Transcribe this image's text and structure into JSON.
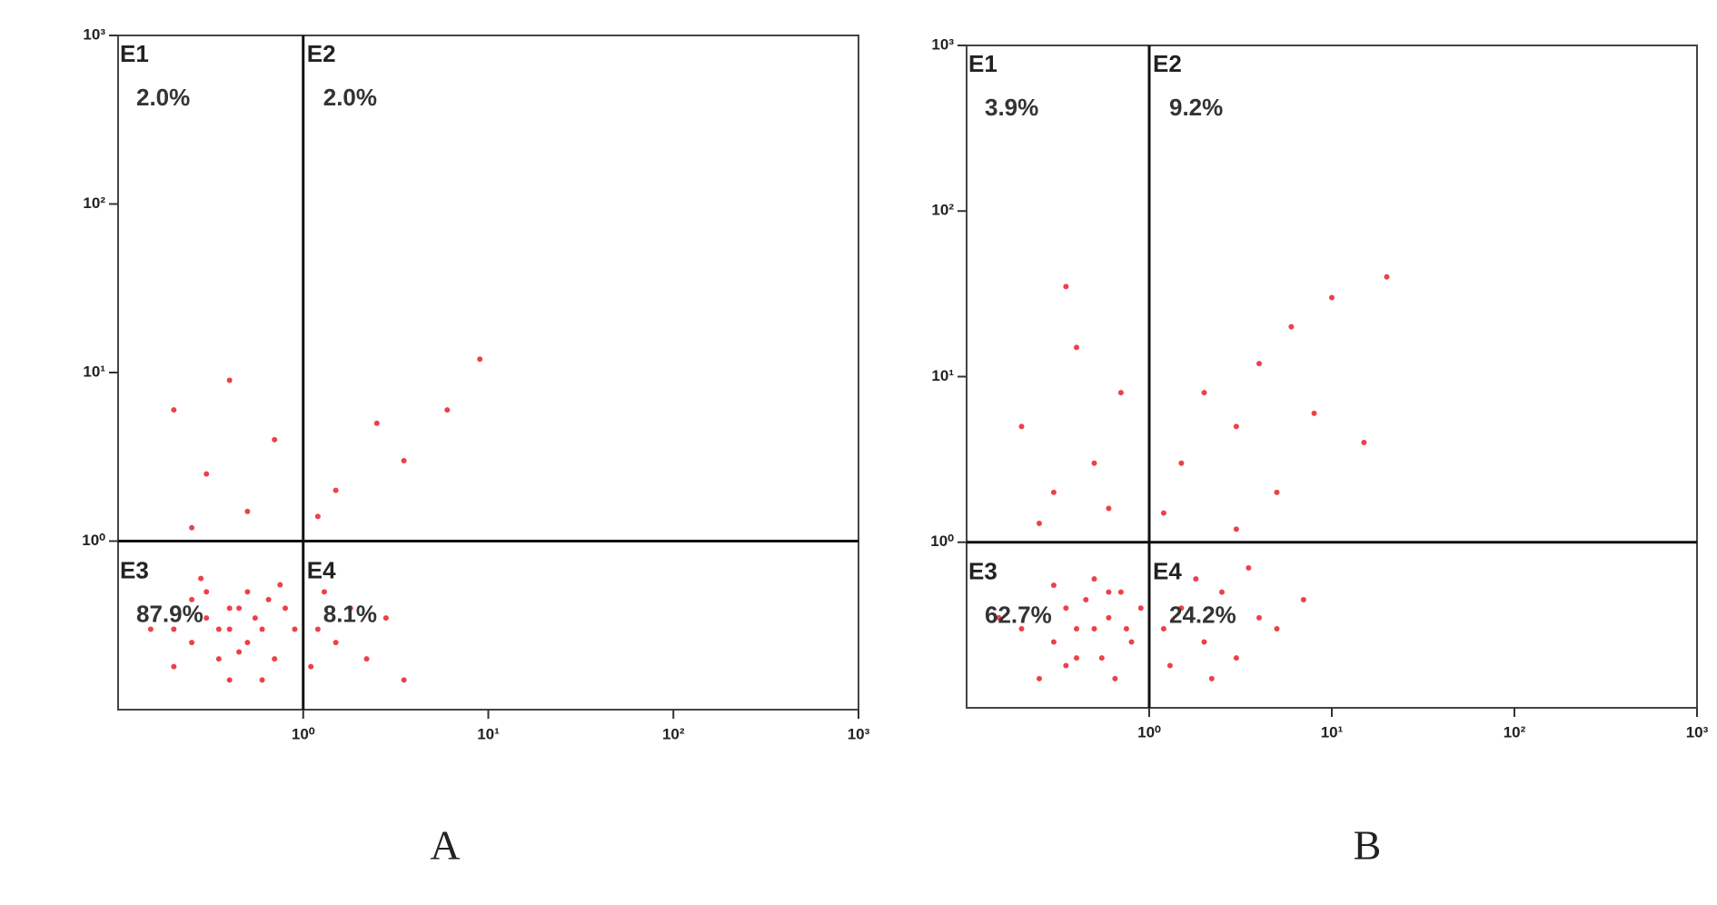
{
  "chart_data": [
    {
      "type": "scatter",
      "title": "A",
      "log_x": true,
      "log_y": true,
      "xlim": [
        0.1,
        1000
      ],
      "ylim": [
        0.1,
        1000
      ],
      "xticks": [
        {
          "value": 1,
          "label": "10⁰"
        },
        {
          "value": 10,
          "label": "10¹"
        },
        {
          "value": 100,
          "label": "10²"
        },
        {
          "value": 1000,
          "label": "10³"
        }
      ],
      "yticks": [
        {
          "value": 1,
          "label": "10⁰"
        },
        {
          "value": 10,
          "label": "10¹"
        },
        {
          "value": 100,
          "label": "10²"
        },
        {
          "value": 1000,
          "label": "10³"
        }
      ],
      "quadrant_x": 1,
      "quadrant_y": 1,
      "quadrant_names": [
        "E1",
        "E2",
        "E3",
        "E4"
      ],
      "values": [
        2.0,
        2.0,
        87.9,
        8.1
      ],
      "value_labels": [
        "2.0%",
        "2.0%",
        "87.9%",
        "8.1%"
      ],
      "series": [
        {
          "color": "#e8101c",
          "x": [
            0.2,
            0.25,
            0.3,
            0.35,
            0.4,
            0.45,
            0.5,
            0.55,
            0.6,
            0.7,
            0.8,
            0.3,
            0.4,
            0.25,
            0.5,
            0.65,
            0.35,
            0.45,
            0.2,
            0.15,
            0.9,
            0.6,
            0.28,
            0.75,
            0.4,
            1.2,
            1.5,
            1.8,
            2.2,
            1.3,
            2.8,
            3.5,
            1.1,
            0.2,
            0.3,
            0.5,
            0.7,
            0.4,
            0.25,
            1.5,
            2.5,
            3.5,
            6,
            9,
            1.2
          ],
          "y": [
            0.3,
            0.25,
            0.35,
            0.2,
            0.3,
            0.4,
            0.25,
            0.35,
            0.3,
            0.2,
            0.4,
            0.5,
            0.15,
            0.45,
            0.5,
            0.45,
            0.3,
            0.22,
            0.18,
            0.3,
            0.3,
            0.15,
            0.6,
            0.55,
            0.4,
            0.3,
            0.25,
            0.4,
            0.2,
            0.5,
            0.35,
            0.15,
            0.18,
            6,
            2.5,
            1.5,
            4,
            9,
            1.2,
            2,
            5,
            3,
            6,
            12,
            1.4
          ]
        }
      ]
    },
    {
      "type": "scatter",
      "title": "B",
      "log_x": true,
      "log_y": true,
      "xlim": [
        0.1,
        1000
      ],
      "ylim": [
        0.1,
        1000
      ],
      "xticks": [
        {
          "value": 1,
          "label": "10⁰"
        },
        {
          "value": 10,
          "label": "10¹"
        },
        {
          "value": 100,
          "label": "10²"
        },
        {
          "value": 1000,
          "label": "10³"
        }
      ],
      "yticks": [
        {
          "value": 1,
          "label": "10⁰"
        },
        {
          "value": 10,
          "label": "10¹"
        },
        {
          "value": 100,
          "label": "10²"
        },
        {
          "value": 1000,
          "label": "10³"
        }
      ],
      "quadrant_x": 1,
      "quadrant_y": 1,
      "quadrant_names": [
        "E1",
        "E2",
        "E3",
        "E4"
      ],
      "values": [
        3.9,
        9.2,
        62.7,
        24.2
      ],
      "value_labels": [
        "3.9%",
        "9.2%",
        "62.7%",
        "24.2%"
      ],
      "series": [
        {
          "color": "#e8101c",
          "x": [
            0.2,
            0.3,
            0.35,
            0.4,
            0.5,
            0.6,
            0.7,
            0.25,
            0.45,
            0.8,
            0.55,
            0.3,
            0.65,
            0.9,
            0.15,
            0.4,
            0.5,
            0.75,
            0.35,
            0.6,
            1.2,
            1.5,
            2,
            2.5,
            3,
            4,
            5,
            1.3,
            1.8,
            7,
            2.2,
            3.5,
            0.2,
            0.3,
            0.4,
            0.5,
            0.7,
            0.25,
            0.6,
            0.35,
            1.5,
            2,
            3,
            4,
            5,
            6,
            8,
            10,
            15,
            20,
            1.2,
            3
          ],
          "y": [
            0.3,
            0.25,
            0.4,
            0.2,
            0.3,
            0.35,
            0.5,
            0.15,
            0.45,
            0.25,
            0.2,
            0.55,
            0.15,
            0.4,
            0.35,
            0.3,
            0.6,
            0.3,
            0.18,
            0.5,
            0.3,
            0.4,
            0.25,
            0.5,
            0.2,
            0.35,
            0.3,
            0.18,
            0.6,
            0.45,
            0.15,
            0.7,
            5,
            2,
            15,
            3,
            8,
            1.3,
            1.6,
            35,
            3,
            8,
            5,
            12,
            2,
            20,
            6,
            30,
            4,
            40,
            1.5,
            1.2
          ]
        }
      ]
    }
  ]
}
